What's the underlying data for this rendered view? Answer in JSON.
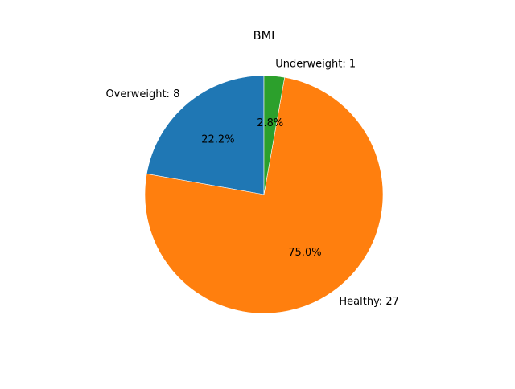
{
  "chart_data": {
    "type": "pie",
    "title": "BMI",
    "start_angle_deg": 90,
    "direction": "counterclockwise",
    "slices": [
      {
        "name": "Overweight",
        "value": 8,
        "label": "Overweight: 8",
        "percent_label": "22.2%",
        "color": "#1f77b4"
      },
      {
        "name": "Healthy",
        "value": 27,
        "label": "Healthy: 27",
        "percent_label": "75.0%",
        "color": "#ff7f0e"
      },
      {
        "name": "Underweight",
        "value": 1,
        "label": "Underweight: 1",
        "percent_label": "2.8%",
        "color": "#2ca02c"
      }
    ]
  }
}
